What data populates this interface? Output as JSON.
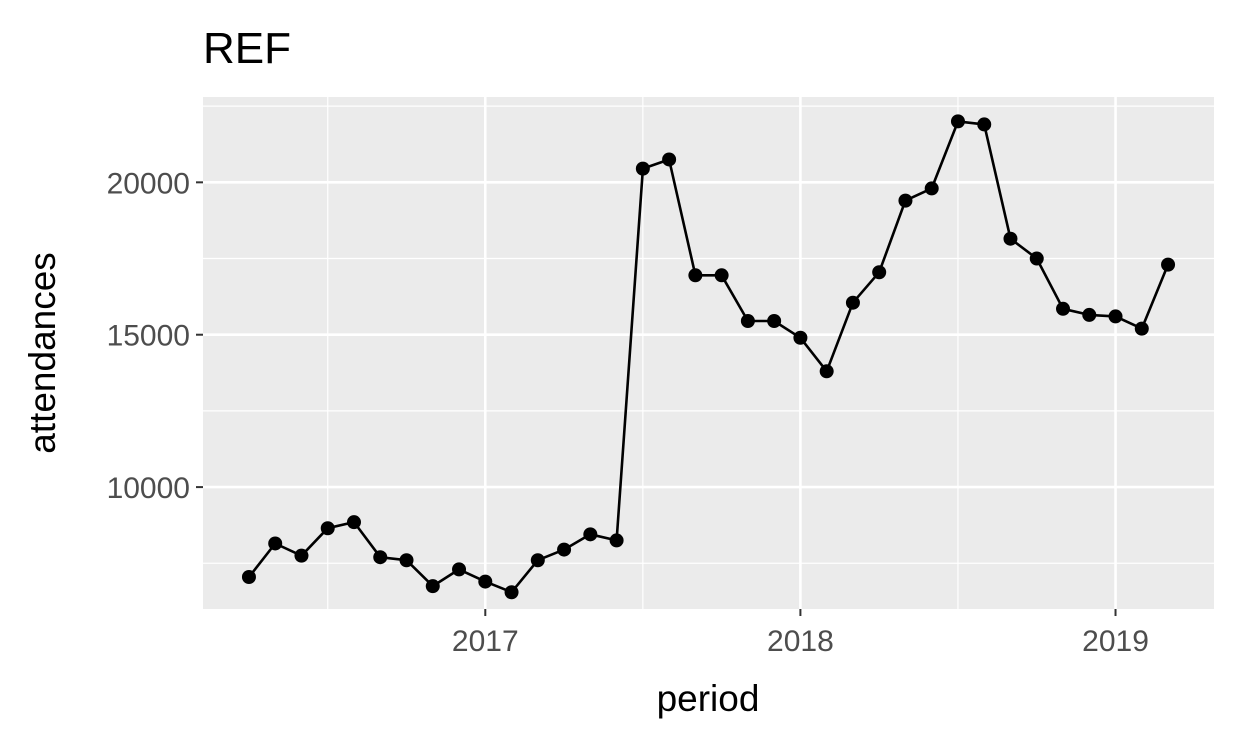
{
  "chart_data": {
    "type": "line",
    "title": "REF",
    "xlabel": "period",
    "ylabel": "attendances",
    "x_ticks": [
      "2017",
      "2018",
      "2019"
    ],
    "y_ticks": [
      "10000",
      "15000",
      "20000"
    ],
    "ylim": [
      6000,
      22800
    ],
    "grid": true,
    "legend": "none",
    "colors": {
      "panel": "#ebebeb",
      "grid": "#ffffff",
      "line": "#000000",
      "point": "#000000"
    },
    "series": [
      {
        "x": [
          "2016-04",
          "2016-05",
          "2016-06",
          "2016-07",
          "2016-08",
          "2016-09",
          "2016-10",
          "2016-11",
          "2016-12",
          "2017-01",
          "2017-02",
          "2017-03",
          "2017-04",
          "2017-05",
          "2017-06",
          "2017-07",
          "2017-08",
          "2017-09",
          "2017-10",
          "2017-11",
          "2017-12",
          "2018-01",
          "2018-02",
          "2018-03",
          "2018-04",
          "2018-05",
          "2018-06",
          "2018-07",
          "2018-08",
          "2018-09",
          "2018-10",
          "2018-11",
          "2018-12",
          "2019-01",
          "2019-02",
          "2019-03"
        ],
        "values": [
          7050,
          8150,
          7750,
          8650,
          8850,
          7700,
          7600,
          6750,
          7300,
          6900,
          6550,
          7600,
          7950,
          8450,
          8250,
          20450,
          20750,
          16950,
          16950,
          15450,
          15450,
          14900,
          13800,
          16050,
          17050,
          19400,
          19800,
          22000,
          21900,
          18150,
          17500,
          15850,
          15650,
          15600,
          15200,
          17300
        ]
      }
    ]
  }
}
